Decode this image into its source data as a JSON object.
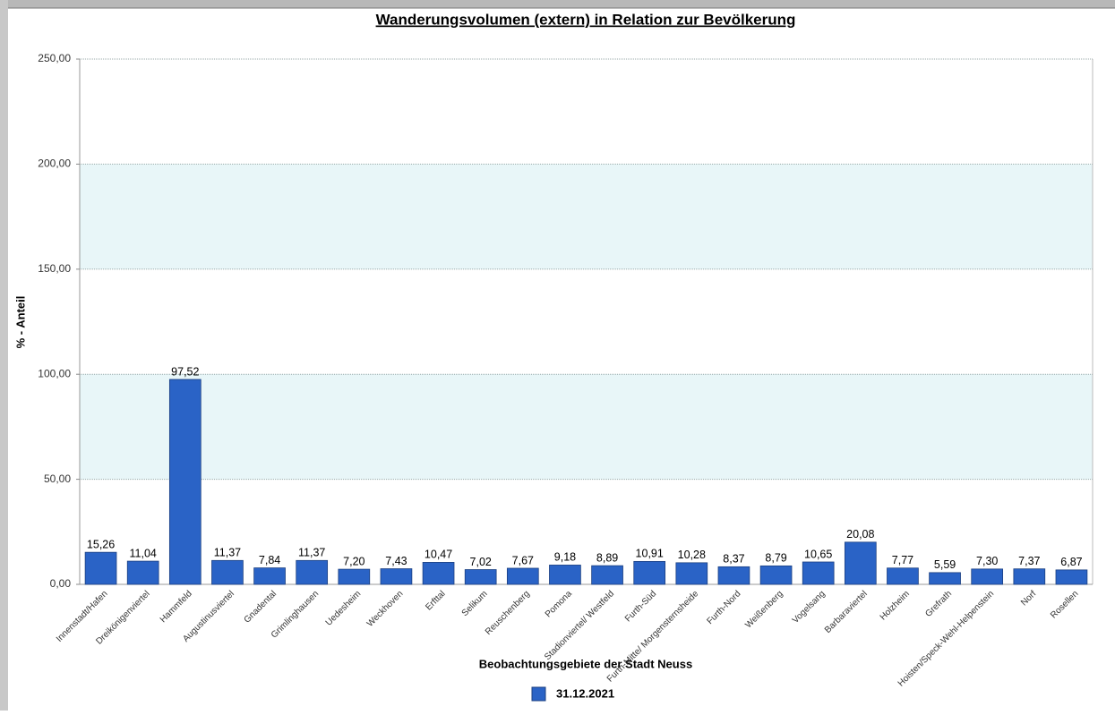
{
  "chart_data": {
    "type": "bar",
    "title": "Wanderungsvolumen (extern) in Relation zur Bevölkerung",
    "x_label": "Beobachtungsgebiete der Stadt Neuss",
    "y_label": "% - Anteil",
    "categories": [
      "Innenstadt/Hafen",
      "Dreikönigenviertel",
      "Hammfeld",
      "Augustinusviertel",
      "Gnadental",
      "Grimlinghausen",
      "Uedesheim",
      "Weckhoven",
      "Erfttal",
      "Selikum",
      "Reuschenberg",
      "Pomona",
      "Stadionviertel/ Westfeld",
      "Furth-Süd",
      "Furth-Mitte/ Morgensternsheide",
      "Furth-Nord",
      "Weißenberg",
      "Vogelsang",
      "Barbaraviertel",
      "Holzheim",
      "Grefrath",
      "Hoisten/Speck-Wehl-Helpenstein",
      "Norf",
      "Rosellen"
    ],
    "series": [
      {
        "name": "31.12.2021",
        "color": "#2a63c6",
        "values": [
          15.26,
          11.04,
          97.52,
          11.37,
          7.84,
          11.37,
          7.2,
          7.43,
          10.47,
          7.02,
          7.67,
          9.18,
          8.89,
          10.91,
          10.28,
          8.37,
          8.79,
          10.65,
          20.08,
          7.77,
          5.59,
          7.3,
          7.37,
          6.87
        ],
        "value_labels": [
          "15,26",
          "11,04",
          "97,52",
          "11,37",
          "7,84",
          "11,37",
          "7,20",
          "7,43",
          "10,47",
          "7,02",
          "7,67",
          "9,18",
          "8,89",
          "10,91",
          "10,28",
          "8,37",
          "8,79",
          "10,65",
          "20,08",
          "7,77",
          "5,59",
          "7,30",
          "7,37",
          "6,87"
        ]
      }
    ],
    "ylim": [
      0,
      250
    ],
    "yticks": [
      {
        "value": 0,
        "label": "0,00"
      },
      {
        "value": 50,
        "label": "50,00"
      },
      {
        "value": 100,
        "label": "100,00"
      },
      {
        "value": 150,
        "label": "150,00"
      },
      {
        "value": 200,
        "label": "200,00"
      },
      {
        "value": 250,
        "label": "250,00"
      }
    ],
    "grid": true
  }
}
